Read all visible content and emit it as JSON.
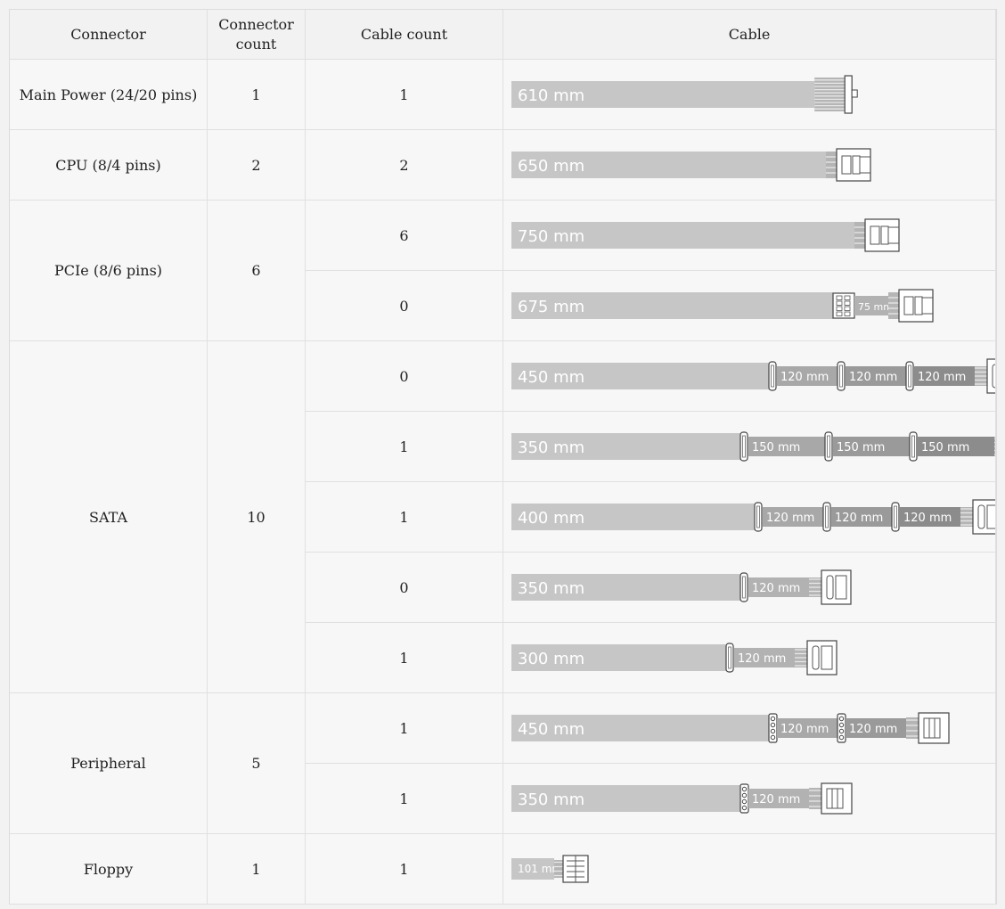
{
  "headers": {
    "connector": "Connector",
    "connector_count": "Connector count",
    "cable_count": "Cable count",
    "cable": "Cable"
  },
  "groups": [
    {
      "connector": "Main Power (24/20 pins)",
      "connector_count": "1",
      "cables": [
        {
          "cable_count": "1",
          "base": "610 mm",
          "segments": [],
          "end": "atx24"
        }
      ]
    },
    {
      "connector": "CPU (8/4 pins)",
      "connector_count": "2",
      "cables": [
        {
          "cable_count": "2",
          "base": "650 mm",
          "segments": [],
          "end": "eps"
        }
      ]
    },
    {
      "connector": "PCIe (8/6 pins)",
      "connector_count": "6",
      "cables": [
        {
          "cable_count": "6",
          "base": "750 mm",
          "segments": [],
          "end": "pcie"
        },
        {
          "cable_count": "0",
          "base": "675 mm",
          "segments": [
            "75 mm"
          ],
          "end": "pcie-dual"
        }
      ]
    },
    {
      "connector": "SATA",
      "connector_count": "10",
      "cables": [
        {
          "cable_count": "0",
          "base": "450 mm",
          "segments": [
            "120 mm",
            "120 mm",
            "120 mm"
          ],
          "end": "sata"
        },
        {
          "cable_count": "1",
          "base": "350 mm",
          "segments": [
            "150 mm",
            "150 mm",
            "150 mm"
          ],
          "end": "sata"
        },
        {
          "cable_count": "1",
          "base": "400 mm",
          "segments": [
            "120 mm",
            "120 mm",
            "120 mm"
          ],
          "end": "sata"
        },
        {
          "cable_count": "0",
          "base": "350 mm",
          "segments": [
            "120 mm"
          ],
          "end": "sata"
        },
        {
          "cable_count": "1",
          "base": "300 mm",
          "segments": [
            "120 mm"
          ],
          "end": "sata"
        }
      ]
    },
    {
      "connector": "Peripheral",
      "connector_count": "5",
      "cables": [
        {
          "cable_count": "1",
          "base": "450 mm",
          "segments": [
            "120 mm",
            "120 mm"
          ],
          "end": "molex"
        },
        {
          "cable_count": "1",
          "base": "350 mm",
          "segments": [
            "120 mm"
          ],
          "end": "molex"
        }
      ]
    },
    {
      "connector": "Floppy",
      "connector_count": "1",
      "cables": [
        {
          "cable_count": "1",
          "base": "101 mm",
          "segments": [],
          "end": "floppy"
        }
      ]
    }
  ]
}
